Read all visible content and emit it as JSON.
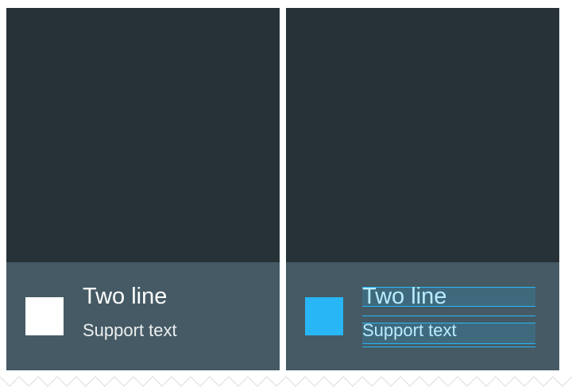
{
  "cards": [
    {
      "title": "Two line",
      "support": "Support text"
    },
    {
      "title": "Two line",
      "support": "Support text"
    }
  ],
  "colors": {
    "background": "#ffffff",
    "dark_area": "#263238",
    "footer": "#455a64",
    "avatar_default": "#ffffff",
    "avatar_highlight": "#29b6f6",
    "guide": "#29b6f6"
  }
}
